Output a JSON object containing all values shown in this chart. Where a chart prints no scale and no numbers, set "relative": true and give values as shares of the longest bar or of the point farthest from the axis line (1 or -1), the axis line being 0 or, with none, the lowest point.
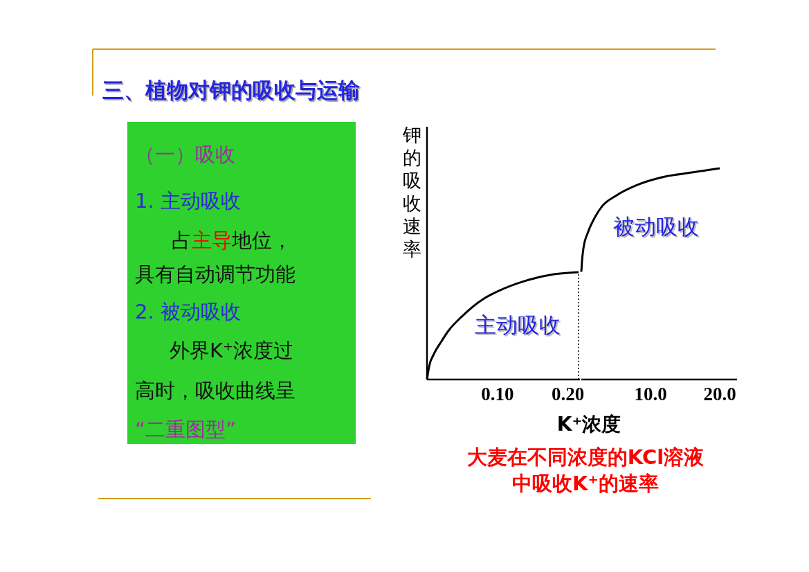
{
  "chart_data": [
    {
      "type": "other",
      "title": "三、植物对钾的吸收与运输",
      "annotations": [
        "（一）吸收",
        "1.  主动吸收",
        "占",
        "主导",
        "地位，",
        "具有自动调节功能",
        "2.  被动吸收",
        "外界K⁺浓度过",
        "高时，吸收曲线呈",
        "“二重图型”"
      ]
    },
    {
      "type": "line",
      "relative": true,
      "xlim": [
        0,
        0.217
      ],
      "xticks": [
        {
          "value": 0.1,
          "label": "0.10"
        },
        {
          "value": 0.2,
          "label": "0.20"
        }
      ],
      "ylabel": "钾的吸收速率",
      "xlabel": "K⁺浓度",
      "marker": "none",
      "line_style": "solid",
      "annotations": [
        "大麦在不同浓度的KCl溶液",
        "中吸收K⁺的速率"
      ],
      "ref_lines": [
        {
          "axis": "x",
          "value": 0.215,
          "line_style": "dotted"
        }
      ],
      "series": [
        {
          "name": "主动吸收",
          "color": "#000000",
          "x": [
            0,
            0.003,
            0.01,
            0.02,
            0.03,
            0.05,
            0.08,
            0.1,
            0.14,
            0.18,
            0.215
          ],
          "values": [
            0,
            0.12,
            0.24,
            0.35,
            0.45,
            0.59,
            0.75,
            0.82,
            0.92,
            0.98,
            1
          ]
        }
      ]
    },
    {
      "type": "line",
      "relative": true,
      "xlim": [
        0,
        22.5
      ],
      "xticks": [
        {
          "value": 10,
          "label": "10.0"
        },
        {
          "value": 20,
          "label": "20.0"
        }
      ],
      "marker": "none",
      "line_style": "solid",
      "series": [
        {
          "name": "被动吸收",
          "color": "#000000",
          "x": [
            0,
            0.1,
            0.3,
            1,
            2,
            3,
            5,
            8,
            12,
            16,
            20
          ],
          "values": [
            0.51,
            0.56,
            0.62,
            0.7,
            0.77,
            0.82,
            0.87,
            0.92,
            0.96,
            0.98,
            1
          ]
        }
      ]
    }
  ]
}
